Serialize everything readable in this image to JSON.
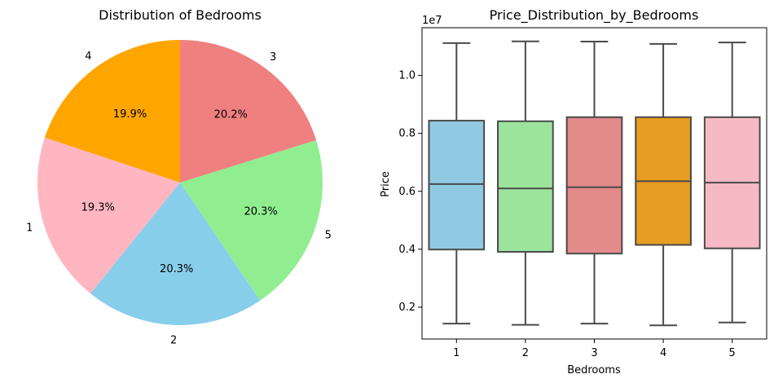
{
  "chart_data": [
    {
      "type": "pie",
      "title": "Distribution of Bedrooms",
      "start_angle_deg": 90,
      "direction": "counterclockwise",
      "slices": [
        {
          "label": "4",
          "value": 19.9,
          "pct_label": "19.9%",
          "color": "#FFA500"
        },
        {
          "label": "1",
          "value": 19.3,
          "pct_label": "19.3%",
          "color": "#FFB6C1"
        },
        {
          "label": "2",
          "value": 20.3,
          "pct_label": "20.3%",
          "color": "#87CEEB"
        },
        {
          "label": "5",
          "value": 20.3,
          "pct_label": "20.3%",
          "color": "#90EE90"
        },
        {
          "label": "3",
          "value": 20.2,
          "pct_label": "20.2%",
          "color": "#F08080"
        }
      ]
    },
    {
      "type": "box",
      "title": "Price_Distribution_by_Bedrooms",
      "xlabel": "Bedrooms",
      "ylabel": "Price",
      "y_offset_label": "1e7",
      "y_scale": 10000000,
      "ylim": [
        900000,
        11650000
      ],
      "yticks": [
        2000000,
        4000000,
        6000000,
        8000000,
        10000000
      ],
      "ytick_labels": [
        "0.2",
        "0.4",
        "0.6",
        "0.8",
        "1.0"
      ],
      "categories": [
        "1",
        "2",
        "3",
        "4",
        "5"
      ],
      "boxes": [
        {
          "category": "1",
          "whisker_low": 1430000,
          "q1": 3990000,
          "median": 6250000,
          "q3": 8440000,
          "whisker_high": 11120000,
          "color": "#8FC9E2"
        },
        {
          "category": "2",
          "whisker_low": 1390000,
          "q1": 3910000,
          "median": 6100000,
          "q3": 8420000,
          "whisker_high": 11180000,
          "color": "#9CE49C"
        },
        {
          "category": "3",
          "whisker_low": 1430000,
          "q1": 3850000,
          "median": 6140000,
          "q3": 8560000,
          "whisker_high": 11170000,
          "color": "#E38A8B"
        },
        {
          "category": "4",
          "whisker_low": 1370000,
          "q1": 4150000,
          "median": 6350000,
          "q3": 8560000,
          "whisker_high": 11090000,
          "color": "#E79D21"
        },
        {
          "category": "5",
          "whisker_low": 1470000,
          "q1": 4030000,
          "median": 6300000,
          "q3": 8560000,
          "whisker_high": 11140000,
          "color": "#F7BAC5"
        }
      ]
    }
  ]
}
